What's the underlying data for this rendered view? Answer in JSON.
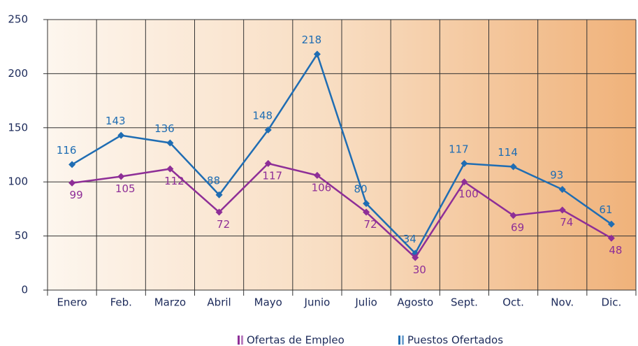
{
  "chart_data": {
    "type": "line",
    "categories": [
      "Enero",
      "Feb.",
      "Marzo",
      "Abril",
      "Mayo",
      "Junio",
      "Julio",
      "Agosto",
      "Sept.",
      "Oct.",
      "Nov.",
      "Dic."
    ],
    "series": [
      {
        "name": "Puestos Ofertados",
        "color": "#1f6db3",
        "values": [
          116,
          143,
          136,
          88,
          148,
          218,
          80,
          34,
          117,
          114,
          93,
          61
        ]
      },
      {
        "name": "Ofertas de Empleo",
        "color": "#8e2e97",
        "values": [
          99,
          105,
          112,
          72,
          117,
          106,
          72,
          30,
          100,
          69,
          74,
          48
        ]
      }
    ],
    "ylim": [
      0,
      250
    ],
    "yticks": [
      0,
      50,
      100,
      150,
      200,
      250
    ],
    "grid": true
  }
}
